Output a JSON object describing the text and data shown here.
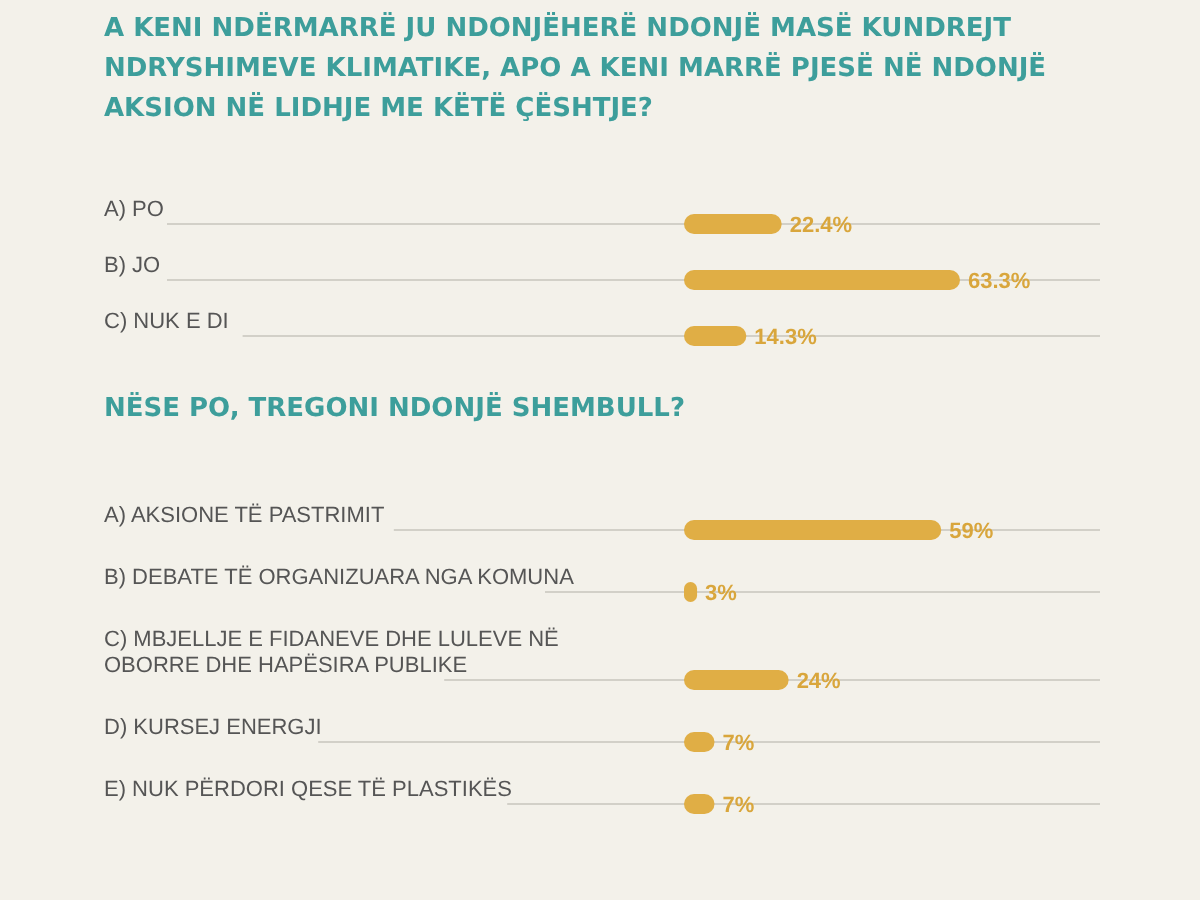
{
  "chart_data": [
    {
      "type": "bar",
      "orientation": "horizontal",
      "title": "A KENI NDËRMARRË JU NDONJËHERË NDONJË MASË KUNDREJT NDRYSHIMEVE KLIMATIKE, APO A KENI MARRË PJESË NË NDONJË AKSION NË LIDHJE ME KËTË ÇËSHTJE?",
      "categories": [
        "A) PO",
        "B) JO",
        "C) NUK E DI"
      ],
      "values": [
        22.4,
        63.3,
        14.3
      ],
      "value_labels": [
        "22.4%",
        "63.3%",
        "14.3%"
      ],
      "color": "#e0ae45"
    },
    {
      "type": "bar",
      "orientation": "horizontal",
      "title": "NËSE PO, TREGONI NDONJË SHEMBULL?",
      "categories": [
        "A) AKSIONE TË PASTRIMIT",
        "B) DEBATE TË ORGANIZUARA NGA KOMUNA",
        "C) MBJELLJE E FIDANEVE DHE LULEVE NË OBORRE DHE HAPËSIRA PUBLIKE",
        "D) KURSEJ ENERGJI",
        "E) NUK PËRDORI QESE TË PLASTIKËS"
      ],
      "values": [
        59,
        3,
        24,
        7,
        7
      ],
      "value_labels": [
        "59%",
        "3%",
        "24%",
        "7%",
        "7%"
      ],
      "color": "#e0ae45"
    }
  ]
}
